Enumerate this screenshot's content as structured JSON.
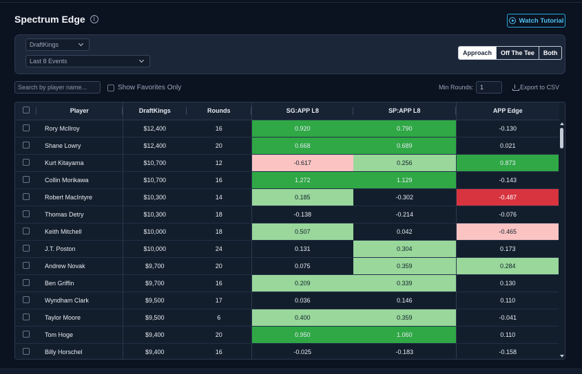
{
  "header": {
    "title": "Spectrum Edge",
    "watch_label": "Watch Tutorial"
  },
  "filters": {
    "book": "DraftKings",
    "events": "Last 8 Events",
    "segments": [
      "Approach",
      "Off The Tee",
      "Both"
    ],
    "active_segment": "Approach"
  },
  "toolbar": {
    "search_placeholder": "Search by player name...",
    "favorites_label": "Show Favorites Only",
    "min_rounds_label": "Min Rounds:",
    "min_rounds_value": "1",
    "export_label": "Export to CSV"
  },
  "table": {
    "columns": [
      "Player",
      "DraftKings",
      "Rounds",
      "SG:APP L8",
      "SP:APP L8",
      "APP Edge"
    ],
    "rows": [
      {
        "player": "Rory McIlroy",
        "salary": "$12,400",
        "rounds": "16",
        "sg": "0.920",
        "sp": "0.790",
        "edge": "-0.130",
        "sg_c": "dg",
        "sp_c": "dg",
        "edge_c": ""
      },
      {
        "player": "Shane Lowry",
        "salary": "$12,400",
        "rounds": "20",
        "sg": "0.668",
        "sp": "0.689",
        "edge": "0.021",
        "sg_c": "dg",
        "sp_c": "dg",
        "edge_c": ""
      },
      {
        "player": "Kurt Kitayama",
        "salary": "$10,700",
        "rounds": "12",
        "sg": "-0.617",
        "sp": "0.256",
        "edge": "0.873",
        "sg_c": "pk",
        "sp_c": "lg",
        "edge_c": "dg"
      },
      {
        "player": "Collin Morikawa",
        "salary": "$10,700",
        "rounds": "16",
        "sg": "1.272",
        "sp": "1.129",
        "edge": "-0.143",
        "sg_c": "dg",
        "sp_c": "dg",
        "edge_c": ""
      },
      {
        "player": "Robert MacIntyre",
        "salary": "$10,300",
        "rounds": "14",
        "sg": "0.185",
        "sp": "-0.302",
        "edge": "-0.487",
        "sg_c": "lg",
        "sp_c": "",
        "edge_c": "rd"
      },
      {
        "player": "Thomas Detry",
        "salary": "$10,300",
        "rounds": "18",
        "sg": "-0.138",
        "sp": "-0.214",
        "edge": "-0.076",
        "sg_c": "",
        "sp_c": "",
        "edge_c": ""
      },
      {
        "player": "Keith Mitchell",
        "salary": "$10,000",
        "rounds": "18",
        "sg": "0.507",
        "sp": "0.042",
        "edge": "-0.465",
        "sg_c": "lg",
        "sp_c": "",
        "edge_c": "pk"
      },
      {
        "player": "J.T. Poston",
        "salary": "$10,000",
        "rounds": "24",
        "sg": "0.131",
        "sp": "0.304",
        "edge": "0.173",
        "sg_c": "",
        "sp_c": "lg",
        "edge_c": ""
      },
      {
        "player": "Andrew Novak",
        "salary": "$9,700",
        "rounds": "20",
        "sg": "0.075",
        "sp": "0.359",
        "edge": "0.284",
        "sg_c": "",
        "sp_c": "lg",
        "edge_c": "lg"
      },
      {
        "player": "Ben Griffin",
        "salary": "$9,700",
        "rounds": "16",
        "sg": "0.209",
        "sp": "0.339",
        "edge": "0.130",
        "sg_c": "lg",
        "sp_c": "lg",
        "edge_c": ""
      },
      {
        "player": "Wyndham Clark",
        "salary": "$9,500",
        "rounds": "17",
        "sg": "0.036",
        "sp": "0.146",
        "edge": "0.110",
        "sg_c": "",
        "sp_c": "",
        "edge_c": ""
      },
      {
        "player": "Taylor Moore",
        "salary": "$9,500",
        "rounds": "6",
        "sg": "0.400",
        "sp": "0.359",
        "edge": "-0.041",
        "sg_c": "lg",
        "sp_c": "lg",
        "edge_c": ""
      },
      {
        "player": "Tom Hoge",
        "salary": "$9,400",
        "rounds": "20",
        "sg": "0.950",
        "sp": "1.060",
        "edge": "0.110",
        "sg_c": "dg",
        "sp_c": "dg",
        "edge_c": ""
      },
      {
        "player": "Billy Horschel",
        "salary": "$9,400",
        "rounds": "16",
        "sg": "-0.025",
        "sp": "-0.183",
        "edge": "-0.158",
        "sg_c": "",
        "sp_c": "",
        "edge_c": ""
      }
    ]
  },
  "colors": {
    "background": "#0b1220",
    "panel": "#1b2638",
    "accent": "#27a9e1",
    "strong_positive": "#2fa845",
    "mild_positive": "#99d79b",
    "mild_negative": "#fbc4c3",
    "strong_negative": "#d7343f"
  }
}
